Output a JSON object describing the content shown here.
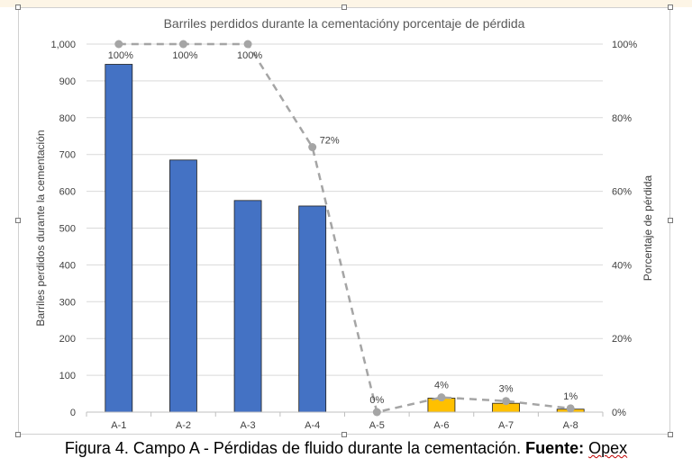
{
  "chart_data": {
    "type": "bar",
    "title": "Barriles perdidos durante la cementacióny porcentaje de pérdida",
    "ylabel": "Barriles perdidos durante la cementación",
    "y2label": "Porcentaje de pérdida",
    "categories": [
      "A-1",
      "A-2",
      "A-3",
      "A-4",
      "A-5",
      "A-6",
      "A-7",
      "A-8"
    ],
    "ylim": [
      0,
      1000
    ],
    "y2lim": [
      0,
      100
    ],
    "yticks": [
      "0",
      "100",
      "200",
      "300",
      "400",
      "500",
      "600",
      "700",
      "800",
      "900",
      "1,000"
    ],
    "y2ticks": [
      "0%",
      "20%",
      "40%",
      "60%",
      "80%",
      "100%"
    ],
    "grid": true,
    "series": [
      {
        "kind": "bar",
        "axis": "left",
        "values": [
          945,
          685,
          575,
          560,
          0,
          38,
          24,
          8
        ],
        "colors": [
          "#4472c4",
          "#4472c4",
          "#4472c4",
          "#4472c4",
          "#ffc000",
          "#ffc000",
          "#ffc000",
          "#ffc000"
        ]
      },
      {
        "kind": "line",
        "axis": "right",
        "style": "dashed",
        "color": "#a5a5a5",
        "values": [
          100,
          100,
          100,
          72,
          0,
          4,
          3,
          1
        ],
        "labels": [
          "100%",
          "100%",
          "100%",
          "72%",
          "0%",
          "4%",
          "3%",
          "1%"
        ]
      }
    ]
  },
  "caption": {
    "prefix": "Figura 4. Campo A - Pérdidas de fluido durante la cementación.",
    "source_label": "Fuente:",
    "source": "Opex"
  }
}
